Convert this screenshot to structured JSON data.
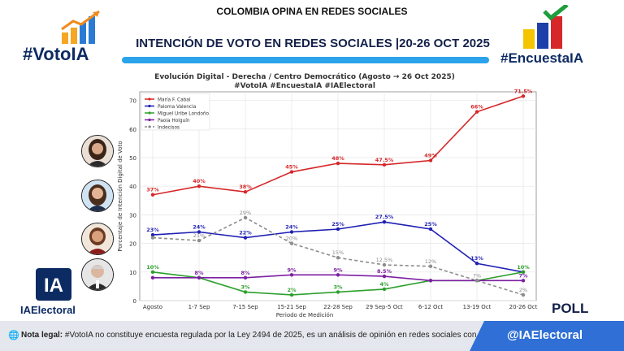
{
  "header": {
    "top_title": "COLOMBIA OPINA EN REDES SOCIALES",
    "main_title": "INTENCIÓN DE VOTO EN REDES SOCIALES |20-26 OCT 2025",
    "left_logo": "#VotoIA",
    "right_logo": "#EncuestaIA",
    "accent_color": "#2aa3ea"
  },
  "branding": {
    "ia_mark": "IA",
    "ia_name": "IAElectoral",
    "poll": "POLL"
  },
  "footer": {
    "note_label": "Nota legal:",
    "note_text": "#VotoIA no constituye encuesta regulada por la Ley 2494 de 2025, es un análisis de opinión en redes sociales con IA.",
    "handle": "@IAElectoral",
    "handle_color": "#2f6fd6"
  },
  "chart_data": {
    "type": "line",
    "title": "Evolución Digital - Derecha / Centro Democrático (Agosto → 26 Oct 2025)",
    "subtitle": "#VotoIA #EncuestaIA #IAElectoral",
    "xlabel": "Periodo de Medición",
    "ylabel": "Porcentaje de Intención Digital de Voto",
    "ylim": [
      0,
      73
    ],
    "yticks": [
      0,
      10,
      20,
      30,
      40,
      50,
      60,
      70
    ],
    "grid": true,
    "legend_position": "top-left",
    "categories": [
      "Agosto",
      "1-7 Sep",
      "7-15 Sep",
      "15-21 Sep",
      "22-28 Sep",
      "29 Sep-5 Oct",
      "6-12 Oct",
      "13-19 Oct",
      "20-26 Oct"
    ],
    "series": [
      {
        "name": "María F. Cabal",
        "color": "#d62728",
        "dashed": false,
        "values": [
          37,
          40,
          38,
          45,
          48,
          47.5,
          49,
          66,
          71.5
        ],
        "labels": [
          "37%",
          "40%",
          "38%",
          "45%",
          "48%",
          "47.5%",
          "49%",
          "66%",
          "71.5%"
        ]
      },
      {
        "name": "Paloma Valencia",
        "color": "#1f1fb4",
        "dashed": false,
        "values": [
          23,
          24,
          22,
          24,
          25,
          27.5,
          25,
          13,
          10
        ],
        "labels": [
          "23%",
          "24%",
          "22%",
          "24%",
          "25%",
          "27.5%",
          "25%",
          "13%",
          ""
        ]
      },
      {
        "name": "Miguel Uribe Londoño",
        "color": "#2ca02c",
        "dashed": false,
        "values": [
          10,
          8,
          3,
          2,
          3,
          4,
          7,
          7,
          10
        ],
        "labels": [
          "10%",
          "",
          "3%",
          "2%",
          "3%",
          "4%",
          "",
          "",
          "10%"
        ]
      },
      {
        "name": "Paola Holguín",
        "color": "#7b1fa2",
        "dashed": false,
        "values": [
          8,
          8,
          8,
          9,
          9,
          8.5,
          7,
          7,
          7
        ],
        "labels": [
          "",
          "8%",
          "8%",
          "9%",
          "9%",
          "8.5%",
          "",
          "",
          "7%"
        ]
      },
      {
        "name": "Indecisos",
        "color": "#8c8c8c",
        "dashed": true,
        "values": [
          22,
          21,
          29,
          20,
          15,
          12.5,
          12,
          7,
          2
        ],
        "labels": [
          "",
          "21%",
          "29%",
          "20%",
          "15%",
          "12.5%",
          "12%",
          "7%",
          "2%"
        ]
      }
    ]
  }
}
